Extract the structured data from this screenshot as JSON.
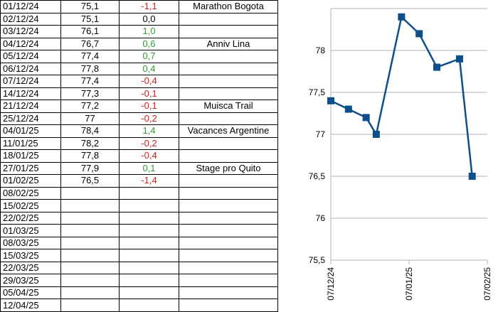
{
  "colors": {
    "positive": "#2e9e2e",
    "negative": "#d42020",
    "neutral": "#000000",
    "line": "#0d4f8b",
    "grid": "#b3b3b3"
  },
  "rows": [
    {
      "date": "01/12/24",
      "weight": "75,1",
      "delta": "-1,1",
      "note": "Marathon Bogota"
    },
    {
      "date": "02/12/24",
      "weight": "75,1",
      "delta": "0,0",
      "note": ""
    },
    {
      "date": "03/12/24",
      "weight": "76,1",
      "delta": "1,0",
      "note": ""
    },
    {
      "date": "04/12/24",
      "weight": "76,7",
      "delta": "0,6",
      "note": "Anniv Lina"
    },
    {
      "date": "05/12/24",
      "weight": "77,4",
      "delta": "0,7",
      "note": ""
    },
    {
      "date": "06/12/24",
      "weight": "77,8",
      "delta": "0,4",
      "note": ""
    },
    {
      "date": "07/12/24",
      "weight": "77,4",
      "delta": "-0,4",
      "note": ""
    },
    {
      "date": "14/12/24",
      "weight": "77,3",
      "delta": "-0,1",
      "note": ""
    },
    {
      "date": "21/12/24",
      "weight": "77,2",
      "delta": "-0,1",
      "note": "Muisca Trail"
    },
    {
      "date": "25/12/24",
      "weight": "77",
      "delta": "-0,2",
      "note": ""
    },
    {
      "date": "04/01/25",
      "weight": "78,4",
      "delta": "1,4",
      "note": "Vacances Argentine"
    },
    {
      "date": "11/01/25",
      "weight": "78,2",
      "delta": "-0,2",
      "note": ""
    },
    {
      "date": "18/01/25",
      "weight": "77,8",
      "delta": "-0,4",
      "note": ""
    },
    {
      "date": "27/01/25",
      "weight": "77,9",
      "delta": "0,1",
      "note": "Stage pro Quito"
    },
    {
      "date": "01/02/25",
      "weight": "76,5",
      "delta": "-1,4",
      "note": ""
    },
    {
      "date": "08/02/25",
      "weight": "",
      "delta": "",
      "note": ""
    },
    {
      "date": "15/02/25",
      "weight": "",
      "delta": "",
      "note": ""
    },
    {
      "date": "22/02/25",
      "weight": "",
      "delta": "",
      "note": ""
    },
    {
      "date": "01/03/25",
      "weight": "",
      "delta": "",
      "note": ""
    },
    {
      "date": "08/03/25",
      "weight": "",
      "delta": "",
      "note": ""
    },
    {
      "date": "15/03/25",
      "weight": "",
      "delta": "",
      "note": ""
    },
    {
      "date": "22/03/25",
      "weight": "",
      "delta": "",
      "note": ""
    },
    {
      "date": "29/03/25",
      "weight": "",
      "delta": "",
      "note": ""
    },
    {
      "date": "05/04/25",
      "weight": "",
      "delta": "",
      "note": ""
    },
    {
      "date": "12/04/25",
      "weight": "",
      "delta": "",
      "note": ""
    }
  ],
  "chart_data": {
    "type": "line",
    "title": "",
    "xlabel": "",
    "ylabel": "",
    "ylim": [
      75.5,
      78.5
    ],
    "y_ticks": [
      "75,5",
      "76",
      "76,5",
      "77",
      "77,5",
      "78"
    ],
    "x_ticks": [
      "07/12/24",
      "07/01/25",
      "07/02/25"
    ],
    "grid": "horizontal",
    "legend": "none",
    "series": [
      {
        "x": [
          "2024-12-07",
          "2024-12-14",
          "2024-12-21",
          "2024-12-25",
          "2025-01-04",
          "2025-01-11",
          "2025-01-18",
          "2025-01-27",
          "2025-02-01"
        ],
        "y": [
          77.4,
          77.3,
          77.2,
          77.0,
          78.4,
          78.2,
          77.8,
          77.9,
          76.5
        ]
      }
    ]
  }
}
